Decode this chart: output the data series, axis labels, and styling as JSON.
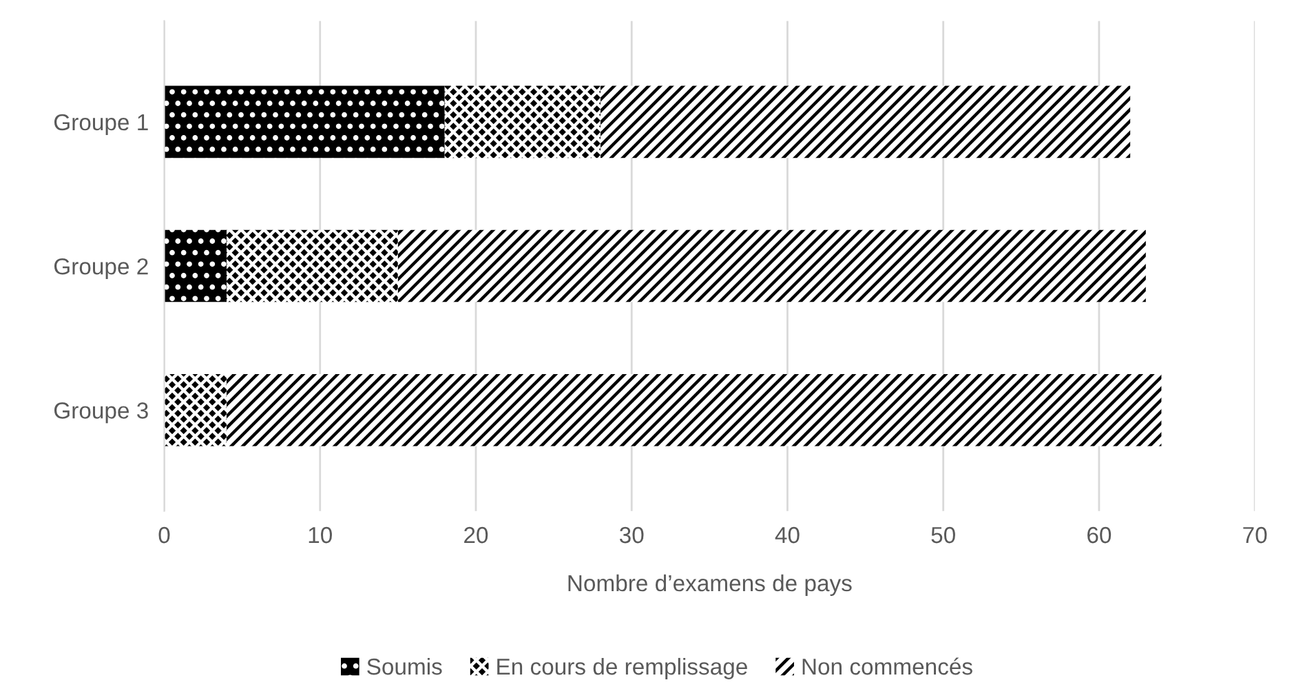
{
  "chart_data": {
    "type": "bar",
    "orientation": "horizontal",
    "stacked": true,
    "xlabel": "Nombre d’examens de pays",
    "categories": [
      "Groupe 1",
      "Groupe 2",
      "Groupe 3"
    ],
    "series": [
      {
        "name": "Soumis",
        "color": "#000000",
        "values": [
          18,
          4,
          0
        ]
      },
      {
        "name": "En cours de remplissage",
        "color": "#000000",
        "values": [
          10,
          11,
          4
        ]
      },
      {
        "name": "Non commencés",
        "color": "#ffffff",
        "values": [
          34,
          48,
          60
        ]
      }
    ],
    "xlim": [
      0,
      70
    ],
    "xticks": [
      0,
      10,
      20,
      30,
      40,
      50,
      60,
      70
    ],
    "grid": "x",
    "legend": "bottom"
  }
}
